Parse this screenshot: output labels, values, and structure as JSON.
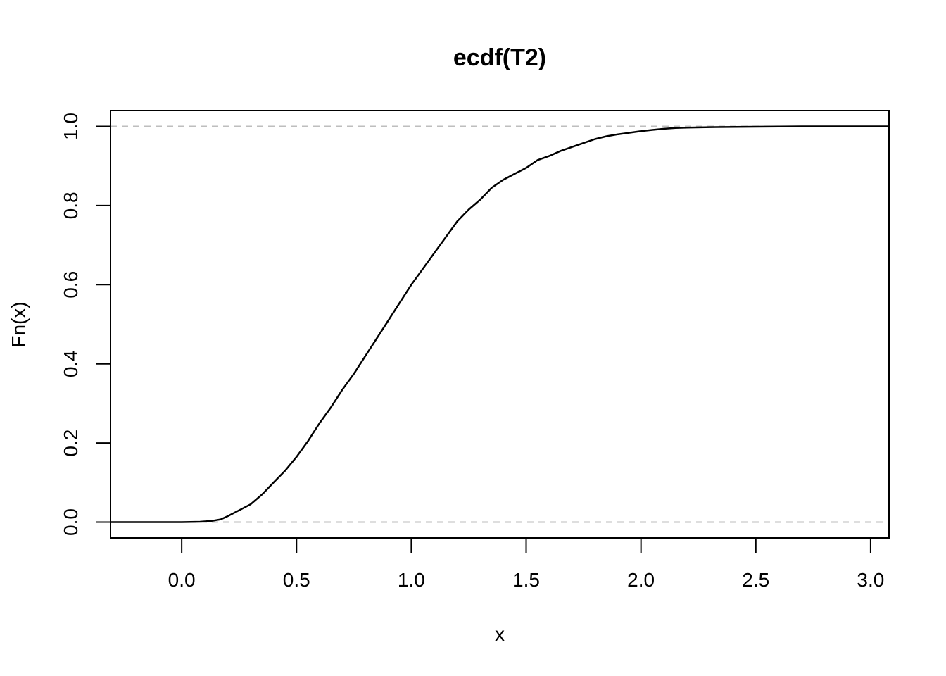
{
  "chart_data": {
    "type": "line",
    "title": "ecdf(T2)",
    "xlabel": "x",
    "ylabel": "Fn(x)",
    "xlim": [
      -0.31,
      3.08
    ],
    "ylim": [
      -0.04,
      1.04
    ],
    "x_ticks": [
      0.0,
      0.5,
      1.0,
      1.5,
      2.0,
      2.5,
      3.0
    ],
    "x_tick_labels": [
      "0.0",
      "0.5",
      "1.0",
      "1.5",
      "2.0",
      "2.5",
      "3.0"
    ],
    "y_ticks": [
      0.0,
      0.2,
      0.4,
      0.6,
      0.8,
      1.0
    ],
    "y_tick_labels": [
      "0.0",
      "0.2",
      "0.4",
      "0.6",
      "0.8",
      "1.0"
    ],
    "reference_lines_y": [
      0,
      1
    ],
    "grid": false,
    "series": [
      {
        "x": [
          -0.31,
          0.0,
          0.08,
          0.13,
          0.17,
          0.2,
          0.25,
          0.3,
          0.35,
          0.4,
          0.45,
          0.5,
          0.55,
          0.6,
          0.65,
          0.7,
          0.75,
          0.8,
          0.85,
          0.9,
          0.95,
          1.0,
          1.05,
          1.1,
          1.15,
          1.2,
          1.25,
          1.3,
          1.35,
          1.4,
          1.45,
          1.5,
          1.55,
          1.6,
          1.65,
          1.7,
          1.75,
          1.8,
          1.85,
          1.9,
          1.95,
          2.0,
          2.05,
          2.1,
          2.15,
          2.2,
          2.3,
          2.5,
          2.7,
          3.08
        ],
        "y": [
          0.0,
          0.0,
          0.001,
          0.003,
          0.007,
          0.015,
          0.03,
          0.045,
          0.07,
          0.1,
          0.13,
          0.165,
          0.205,
          0.25,
          0.29,
          0.335,
          0.375,
          0.42,
          0.465,
          0.51,
          0.555,
          0.6,
          0.64,
          0.68,
          0.72,
          0.76,
          0.79,
          0.815,
          0.845,
          0.865,
          0.88,
          0.895,
          0.915,
          0.925,
          0.938,
          0.948,
          0.958,
          0.968,
          0.975,
          0.98,
          0.984,
          0.988,
          0.991,
          0.994,
          0.996,
          0.997,
          0.998,
          0.999,
          1.0,
          1.0
        ]
      }
    ]
  }
}
